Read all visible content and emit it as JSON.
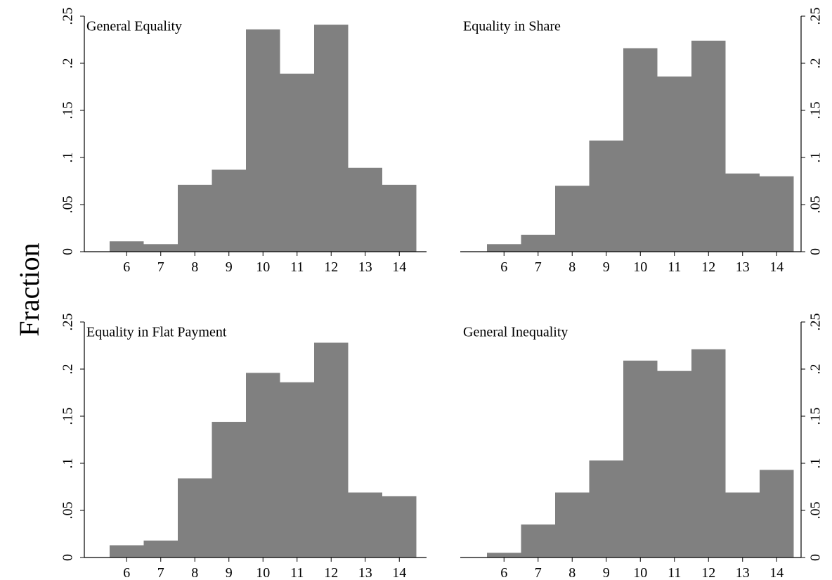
{
  "figure": {
    "ylabel": "Fraction",
    "bar_color": "#808080",
    "axis_color": "#000000",
    "background": "#ffffff"
  },
  "chart_data": [
    {
      "type": "bar",
      "title": "General Equality",
      "xlabel": "",
      "ylabel": "Fraction",
      "categories": [
        "6",
        "7",
        "8",
        "9",
        "10",
        "11",
        "12",
        "13",
        "14"
      ],
      "values": [
        0.011,
        0.008,
        0.071,
        0.087,
        0.236,
        0.189,
        0.241,
        0.089,
        0.071
      ],
      "ylim": [
        0,
        0.25
      ],
      "yticks": [
        "0",
        ".05",
        ".1",
        ".15",
        ".2",
        ".25"
      ],
      "yaxis_side": "left",
      "grid": false
    },
    {
      "type": "bar",
      "title": "Equality in Share",
      "xlabel": "",
      "ylabel": "Fraction",
      "categories": [
        "6",
        "7",
        "8",
        "9",
        "10",
        "11",
        "12",
        "13",
        "14"
      ],
      "values": [
        0.008,
        0.018,
        0.07,
        0.118,
        0.216,
        0.186,
        0.224,
        0.083,
        0.08
      ],
      "ylim": [
        0,
        0.25
      ],
      "yticks": [
        "0",
        ".05",
        ".1",
        ".15",
        ".2",
        ".25"
      ],
      "yaxis_side": "right",
      "grid": false
    },
    {
      "type": "bar",
      "title": "Equality in Flat Payment",
      "xlabel": "",
      "ylabel": "Fraction",
      "categories": [
        "6",
        "7",
        "8",
        "9",
        "10",
        "11",
        "12",
        "13",
        "14"
      ],
      "values": [
        0.013,
        0.018,
        0.084,
        0.144,
        0.196,
        0.186,
        0.228,
        0.069,
        0.065
      ],
      "ylim": [
        0,
        0.25
      ],
      "yticks": [
        "0",
        ".05",
        ".1",
        ".15",
        ".2",
        ".25"
      ],
      "yaxis_side": "left",
      "grid": false
    },
    {
      "type": "bar",
      "title": "General Inequality",
      "xlabel": "",
      "ylabel": "Fraction",
      "categories": [
        "6",
        "7",
        "8",
        "9",
        "10",
        "11",
        "12",
        "13",
        "14"
      ],
      "values": [
        0.005,
        0.035,
        0.069,
        0.103,
        0.209,
        0.198,
        0.221,
        0.069,
        0.093
      ],
      "ylim": [
        0,
        0.25
      ],
      "yticks": [
        "0",
        ".05",
        ".1",
        ".15",
        ".2",
        ".25"
      ],
      "yaxis_side": "right",
      "grid": false
    }
  ]
}
